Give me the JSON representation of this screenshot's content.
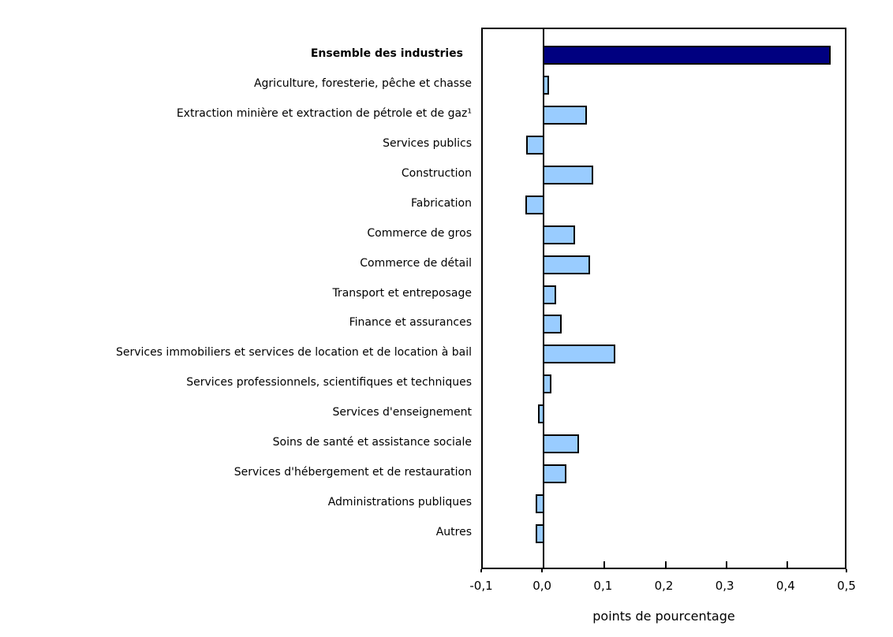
{
  "page": {
    "background_color": "#ffffff"
  },
  "chart_data": {
    "type": "bar",
    "orientation": "horizontal",
    "xlabel": "points de pourcentage",
    "xlim": [
      -0.1,
      0.5
    ],
    "xticks": [
      -0.1,
      0.0,
      0.1,
      0.2,
      0.3,
      0.4,
      0.5
    ],
    "xtick_labels": [
      "-0,1",
      "0,0",
      "0,1",
      "0,2",
      "0,3",
      "0,4",
      "0,5"
    ],
    "grid": false,
    "legend": false,
    "categories": [
      "Ensemble des industries",
      "Agriculture, foresterie, pêche et chasse",
      "Extraction minière et extraction de pétrole et de gaz¹",
      "Services publics",
      "Construction",
      "Fabrication",
      "Commerce de gros",
      "Commerce de détail",
      "Transport et entreposage",
      "Finance et assurances",
      "Services immobiliers et services de location et de location à bail",
      "Services professionnels, scientifiques et techniques",
      "Services d'enseignement",
      "Soins de santé et assistance sociale",
      "Services d'hébergement et de restauration",
      "Administrations publiques",
      "Autres"
    ],
    "values": [
      0.47,
      0.008,
      0.07,
      -0.027,
      0.08,
      -0.028,
      0.05,
      0.075,
      0.02,
      0.028,
      0.117,
      0.012,
      -0.008,
      0.057,
      0.036,
      -0.012,
      -0.012
    ],
    "emphasis": {
      "index": 0,
      "bold_label": true
    },
    "colors": {
      "highlight_bar": "#000080",
      "bar": "#99ccff",
      "bar_border": "#000000",
      "axis": "#000000",
      "text": "#000000"
    }
  }
}
